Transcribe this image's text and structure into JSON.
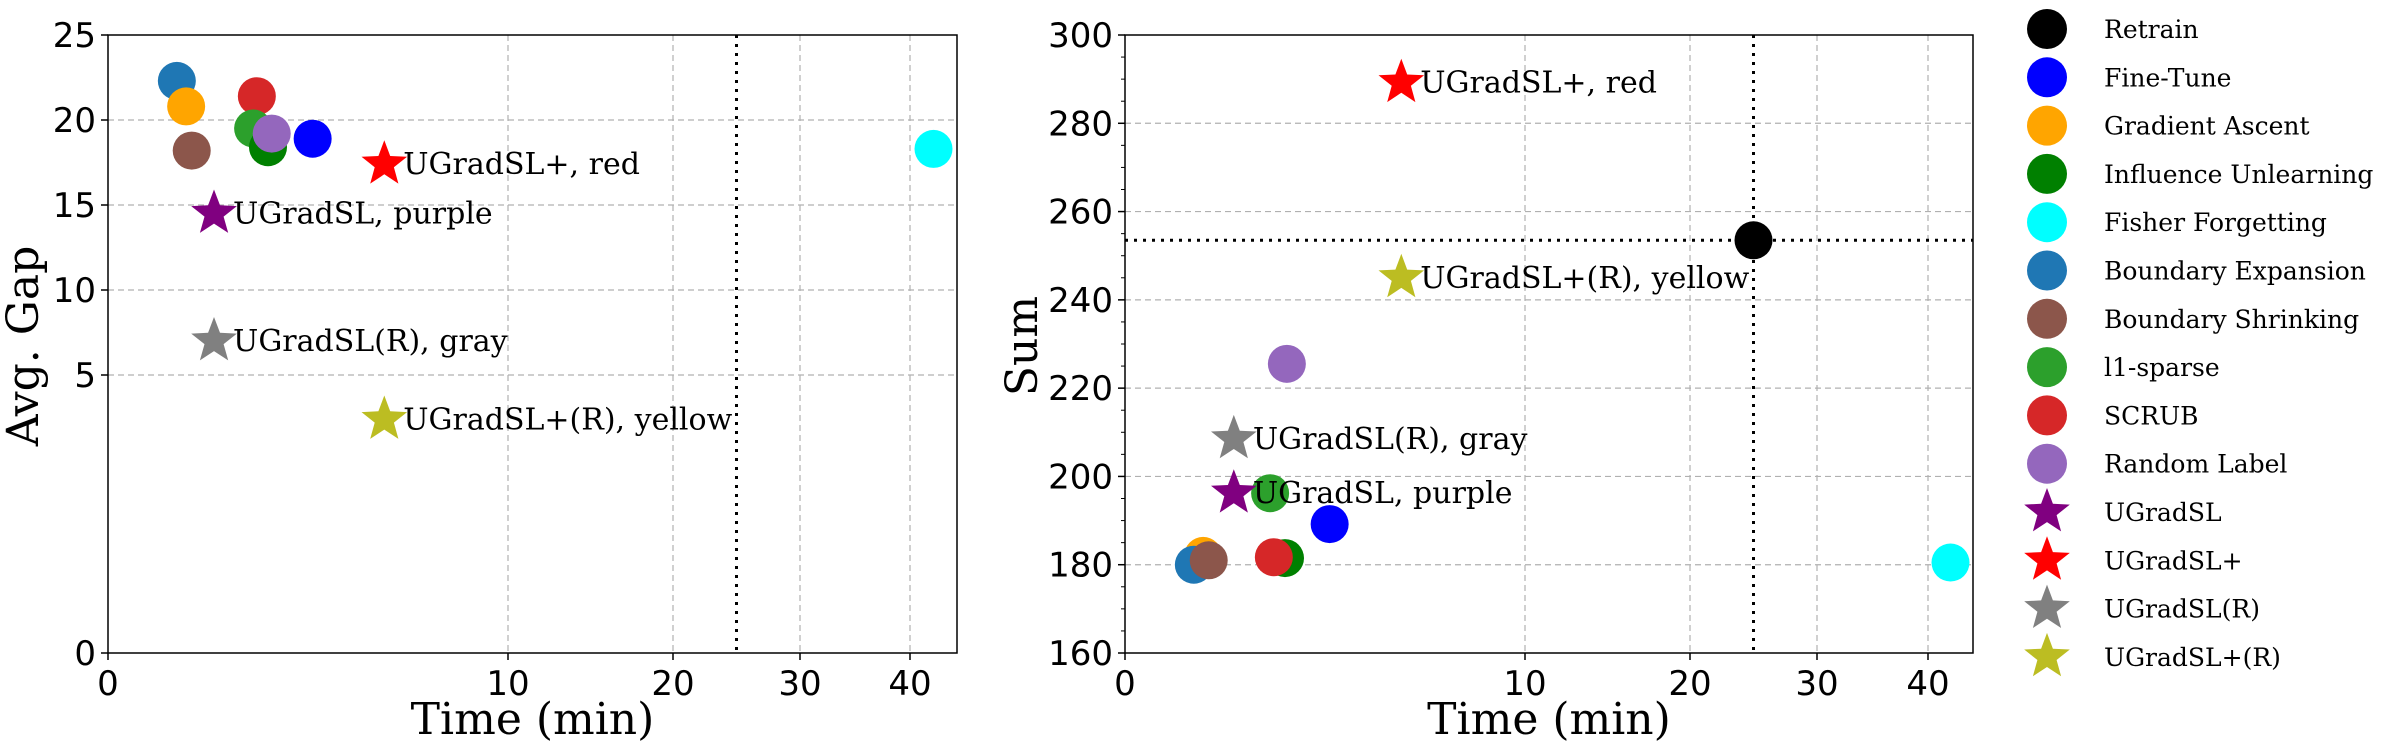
{
  "colors": {
    "Retrain": "#000000",
    "Fine-Tune": "#0000ff",
    "Gradient Ascent": "#ffa500",
    "Influence Unlearning": "#008000",
    "Fisher Forgetting": "#00ffff",
    "Boundary Expansion": "#1f77b4",
    "Boundary Shrinking": "#8c564b",
    "l1-sparse": "#2ca02c",
    "SCRUB": "#d62728",
    "Random Label": "#9467bd",
    "UGradSL": "#800080",
    "UGradSL+": "#ff0000",
    "UGradSL(R)": "#808080",
    "UGradSL+(R)": "#bcbd22"
  },
  "legend": {
    "entries": [
      {
        "label": "Retrain",
        "marker": "circle"
      },
      {
        "label": "Fine-Tune",
        "marker": "circle"
      },
      {
        "label": "Gradient Ascent",
        "marker": "circle"
      },
      {
        "label": "Influence Unlearning",
        "marker": "circle"
      },
      {
        "label": "Fisher Forgetting",
        "marker": "circle"
      },
      {
        "label": "Boundary Expansion",
        "marker": "circle"
      },
      {
        "label": "Boundary Shrinking",
        "marker": "circle"
      },
      {
        "label": "l1-sparse",
        "marker": "circle"
      },
      {
        "label": "SCRUB",
        "marker": "circle"
      },
      {
        "label": "Random Label",
        "marker": "circle"
      },
      {
        "label": "UGradSL",
        "marker": "star"
      },
      {
        "label": "UGradSL+",
        "marker": "star"
      },
      {
        "label": "UGradSL(R)",
        "marker": "star"
      },
      {
        "label": "UGradSL+(R)",
        "marker": "star"
      }
    ]
  },
  "chart_data": [
    {
      "type": "scatter",
      "xlabel": "Time (min)",
      "ylabel": "Avg. Gap",
      "xscale": "piecewise (roughly linear 0-4.3, symlog beyond)",
      "yscale": "piecewise (roughly linear 0-5, compressed 5-25)",
      "xticks": [
        0,
        10,
        20,
        30,
        40
      ],
      "yticks": [
        0,
        5,
        10,
        15,
        20,
        25
      ],
      "xlim": [
        0,
        44
      ],
      "ylim": [
        0,
        25
      ],
      "grid": true,
      "vline_x": 25,
      "points": [
        {
          "method": "Boundary Expansion",
          "x": 0.74,
          "y": 22.3,
          "marker": "circle"
        },
        {
          "method": "Gradient Ascent",
          "x": 0.84,
          "y": 20.8,
          "marker": "circle"
        },
        {
          "method": "Boundary Shrinking",
          "x": 0.9,
          "y": 18.2,
          "marker": "circle"
        },
        {
          "method": "SCRUB",
          "x": 1.6,
          "y": 21.4,
          "marker": "circle"
        },
        {
          "method": "l1-sparse",
          "x": 1.56,
          "y": 19.5,
          "marker": "circle"
        },
        {
          "method": "Influence Unlearning",
          "x": 1.72,
          "y": 18.4,
          "marker": "circle"
        },
        {
          "method": "Random Label",
          "x": 1.76,
          "y": 19.2,
          "marker": "circle"
        },
        {
          "method": "Fine-Tune",
          "x": 2.2,
          "y": 18.9,
          "marker": "circle"
        },
        {
          "method": "Fisher Forgetting",
          "x": 42,
          "y": 18.3,
          "marker": "circle"
        },
        {
          "method": "UGradSL+",
          "x": 2.97,
          "y": 17.4,
          "marker": "star",
          "annotation": "UGradSL+, red"
        },
        {
          "method": "UGradSL",
          "x": 1.14,
          "y": 14.5,
          "marker": "star",
          "annotation": "UGradSL, purple"
        },
        {
          "method": "UGradSL(R)",
          "x": 1.14,
          "y": 7.0,
          "marker": "star",
          "annotation": "UGradSL(R), gray"
        },
        {
          "method": "UGradSL+(R)",
          "x": 2.97,
          "y": 4.2,
          "marker": "star",
          "annotation": "UGradSL+(R), yellow"
        }
      ]
    },
    {
      "type": "scatter",
      "xlabel": "Time (min)",
      "ylabel": "Sum",
      "xscale": "piecewise (roughly linear 0-4.3, symlog beyond)",
      "yscale": "linear",
      "xticks": [
        0,
        10,
        20,
        30,
        40
      ],
      "yticks": [
        160,
        180,
        200,
        220,
        240,
        260,
        280,
        300
      ],
      "xlim": [
        0,
        44
      ],
      "ylim": [
        160,
        300
      ],
      "grid": true,
      "vline_x": 25,
      "hline_y": 253.5,
      "points": [
        {
          "method": "Retrain",
          "x": 25,
          "y": 253.5,
          "marker": "circle"
        },
        {
          "method": "Fine-Tune",
          "x": 2.2,
          "y": 189.2,
          "marker": "circle"
        },
        {
          "method": "Gradient Ascent",
          "x": 0.84,
          "y": 182,
          "marker": "circle"
        },
        {
          "method": "Influence Unlearning",
          "x": 1.72,
          "y": 181.5,
          "marker": "circle"
        },
        {
          "method": "Fisher Forgetting",
          "x": 42,
          "y": 180.5,
          "marker": "circle"
        },
        {
          "method": "Boundary Expansion",
          "x": 0.74,
          "y": 180,
          "marker": "circle"
        },
        {
          "method": "Boundary Shrinking",
          "x": 0.9,
          "y": 181,
          "marker": "circle"
        },
        {
          "method": "l1-sparse",
          "x": 1.56,
          "y": 196.2,
          "marker": "circle"
        },
        {
          "method": "SCRUB",
          "x": 1.6,
          "y": 181.7,
          "marker": "circle"
        },
        {
          "method": "Random Label",
          "x": 1.74,
          "y": 225.5,
          "marker": "circle"
        },
        {
          "method": "UGradSL+",
          "x": 2.97,
          "y": 289.2,
          "marker": "star",
          "annotation": "UGradSL+, red"
        },
        {
          "method": "UGradSL+(R)",
          "x": 2.97,
          "y": 245,
          "marker": "star",
          "annotation": "UGradSL+(R), yellow"
        },
        {
          "method": "UGradSL(R)",
          "x": 1.17,
          "y": 208.5,
          "marker": "star",
          "annotation": "UGradSL(R), gray"
        },
        {
          "method": "UGradSL",
          "x": 1.17,
          "y": 196.2,
          "marker": "star",
          "annotation": "UGradSL, purple"
        }
      ]
    }
  ]
}
